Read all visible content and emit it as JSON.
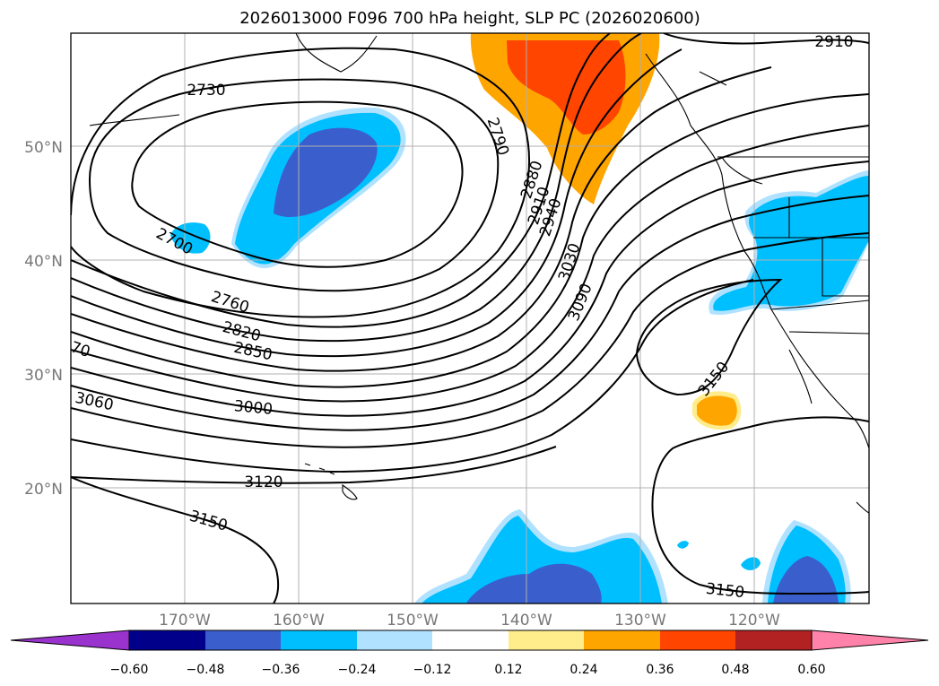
{
  "title": "2026013000 F096 700 hPa height, SLP PC (2026020600)",
  "map": {
    "lat_range": [
      10,
      60
    ],
    "lon_range": [
      -180,
      -110
    ],
    "lat_ticks": [
      "50°N",
      "40°N",
      "30°N",
      "20°N"
    ],
    "lon_ticks": [
      "170°W",
      "160°W",
      "150°W",
      "140°W",
      "130°W",
      "120°W"
    ],
    "grid": true
  },
  "contour_labels": [
    "2910",
    "2730",
    "2790",
    "2880",
    "2910",
    "2940",
    "3030",
    "3090",
    "2700",
    "2760",
    "2820",
    "2850",
    "70",
    "3060",
    "3000",
    "3150",
    "3120",
    "3150",
    "3150"
  ],
  "colorbar": {
    "labels": [
      "−0.60",
      "−0.48",
      "−0.36",
      "−0.24",
      "−0.12",
      "0.12",
      "0.24",
      "0.36",
      "0.48",
      "0.60"
    ],
    "colors": [
      "#9a32cd",
      "#00008b",
      "#3a5fcd",
      "#00bfff",
      "#b0e2ff",
      "#ffffff",
      "#ffec8b",
      "#ffa500",
      "#ff4500",
      "#b22222",
      "#ff82ab"
    ]
  }
}
